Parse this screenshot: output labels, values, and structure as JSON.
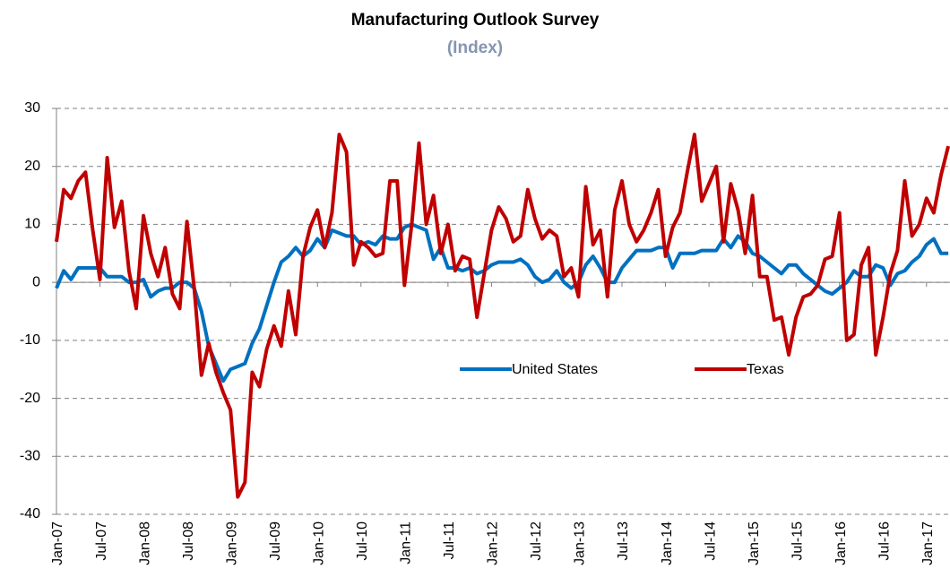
{
  "chart_data": {
    "type": "line",
    "title": "Manufacturing Outlook Survey",
    "subtitle": "(Index)",
    "categories": [
      "Jan-07",
      null,
      null,
      null,
      null,
      null,
      "Jul-07",
      null,
      null,
      null,
      null,
      null,
      "Jan-08",
      null,
      null,
      null,
      null,
      null,
      "Jul-08",
      null,
      null,
      null,
      null,
      null,
      "Jan-09",
      null,
      null,
      null,
      null,
      null,
      "Jul-09",
      null,
      null,
      null,
      null,
      null,
      "Jan-10",
      null,
      null,
      null,
      null,
      null,
      "Jul-10",
      null,
      null,
      null,
      null,
      null,
      "Jan-11",
      null,
      null,
      null,
      null,
      null,
      "Jul-11",
      null,
      null,
      null,
      null,
      null,
      "Jan-12",
      null,
      null,
      null,
      null,
      null,
      "Jul-12",
      null,
      null,
      null,
      null,
      null,
      "Jan-13",
      null,
      null,
      null,
      null,
      null,
      "Jul-13",
      null,
      null,
      null,
      null,
      null,
      "Jan-14",
      null,
      null,
      null,
      null,
      null,
      "Jul-14",
      null,
      null,
      null,
      null,
      null,
      "Jan-15",
      null,
      null,
      null,
      null,
      null,
      "Jul-15",
      null,
      null,
      null,
      null,
      null,
      "Jan-16",
      null,
      null,
      null,
      null,
      null,
      "Jul-16",
      null,
      null,
      null,
      null,
      null,
      "Jan-17",
      null,
      null,
      null
    ],
    "series": [
      {
        "name": "United States",
        "color": "#0070c0",
        "values": [
          -1,
          2,
          0.5,
          2.5,
          2.5,
          2.5,
          2.5,
          1,
          1,
          1,
          0,
          0,
          0.5,
          -2.5,
          -1.5,
          -1,
          -1,
          0,
          0,
          -1,
          -5,
          -11,
          -14,
          -17,
          -15,
          -14.5,
          -14,
          -10.5,
          -8,
          -4,
          0,
          3.5,
          4.5,
          6,
          4.5,
          5.5,
          7.5,
          6,
          9,
          8.5,
          8,
          8,
          6.5,
          7,
          6.5,
          8,
          7.5,
          7.5,
          9.5,
          10,
          9.5,
          9,
          4,
          6,
          2.5,
          2.5,
          2,
          2.5,
          1.5,
          2,
          3,
          3.5,
          3.5,
          3.5,
          4,
          3,
          1,
          0,
          0.5,
          2,
          0,
          -1,
          0,
          3,
          4.5,
          2.5,
          0,
          0,
          2.5,
          4,
          5.5,
          5.5,
          5.5,
          6,
          6,
          2.5,
          5,
          5,
          5,
          5.5,
          5.5,
          5.5,
          7.5,
          6,
          8,
          7,
          5,
          4.5,
          3.5,
          2.5,
          1.5,
          3,
          3,
          1.5,
          0.5,
          -0.5,
          -1.5,
          -2,
          -1,
          0,
          2,
          1,
          1,
          3,
          2.5,
          -0.5,
          1.5,
          2,
          3.5,
          4.5,
          6.5,
          7.5,
          5,
          5
        ]
      },
      {
        "name": "Texas",
        "color": "#c00000",
        "values": [
          7,
          16,
          14.5,
          17.5,
          19,
          9,
          0.5,
          21.5,
          9.5,
          14,
          2,
          -4.5,
          11.5,
          5,
          1,
          6,
          -2,
          -4.5,
          10.5,
          -1,
          -16,
          -10.5,
          -15.5,
          -19,
          -22,
          -37,
          -34.5,
          -15.5,
          -18,
          -11.5,
          -7.5,
          -11,
          -1.5,
          -9,
          4.5,
          9.5,
          12.5,
          6,
          12,
          25.5,
          22.5,
          3,
          7,
          6,
          4.5,
          5,
          17.5,
          17.5,
          -0.5,
          10,
          24,
          10,
          15,
          5,
          10,
          2,
          4.5,
          4,
          -6,
          1.5,
          9,
          13,
          11,
          7,
          8,
          16,
          11,
          7.5,
          9,
          8,
          1,
          2.5,
          -2.5,
          16.5,
          6.5,
          9,
          -2.5,
          12.5,
          17.5,
          10,
          7,
          9,
          12,
          16,
          4.5,
          9.5,
          12,
          19,
          25.5,
          14,
          17,
          20,
          7,
          17,
          12.5,
          5,
          15,
          1,
          1,
          -6.5,
          -6,
          -12.5,
          -6,
          -2.5,
          -2,
          -0.5,
          4,
          4.5,
          12,
          -10,
          -9,
          3,
          6,
          -12.5,
          -6,
          1.5,
          5.5,
          17.5,
          8,
          10,
          14.5,
          12,
          18.5,
          23.5
        ]
      }
    ],
    "ylim": [
      -40,
      30
    ],
    "yticks": [
      -40,
      -30,
      -20,
      -10,
      0,
      10,
      20,
      30
    ],
    "grid": true
  }
}
